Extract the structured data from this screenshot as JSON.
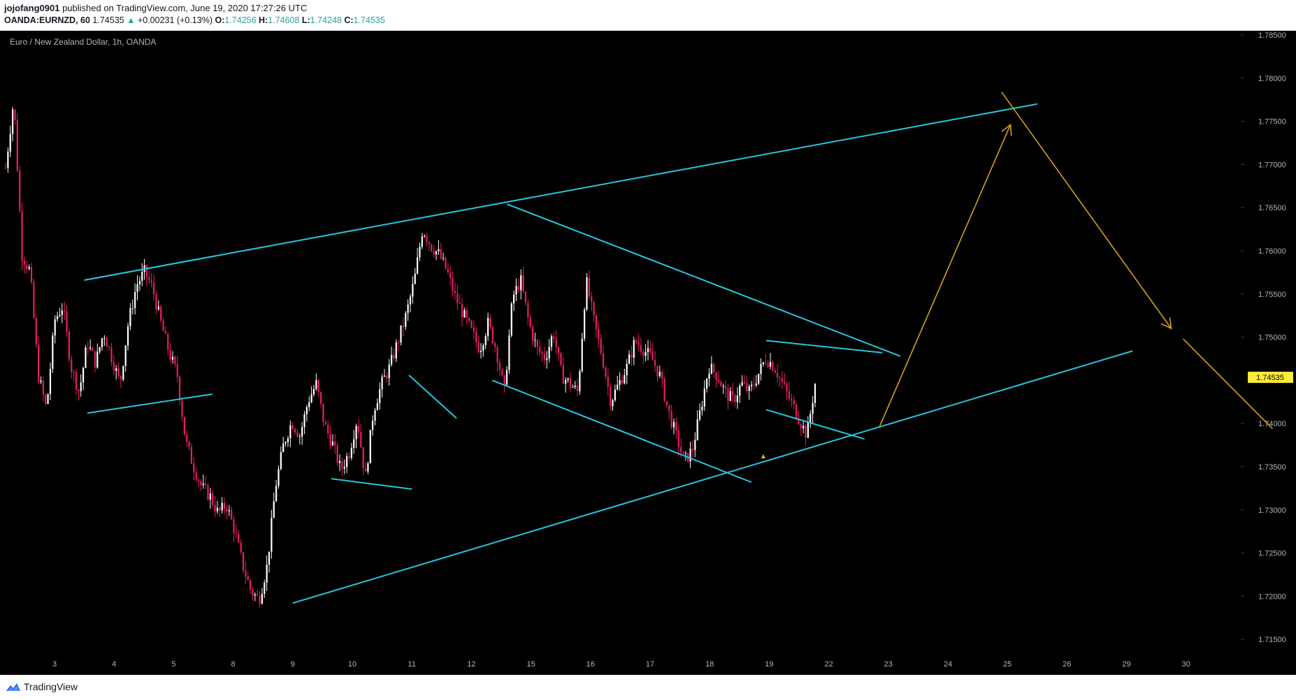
{
  "header": {
    "line1": {
      "author": "jojofang0901",
      "published": " published on TradingView.com, June 19, 2020 17:27:26 UTC"
    },
    "line2": {
      "symbol": "OANDA:EURNZD, 60",
      "price": "1.74535",
      "arrow": "▲",
      "change": "+0.00231 (+0.13%)",
      "o_label": "O:",
      "o_value": "1.74256",
      "h_label": "H:",
      "h_value": "1.74608",
      "l_label": "L:",
      "l_value": "1.74248",
      "c_label": "C:",
      "c_value": "1.74535"
    }
  },
  "chart_data": {
    "type": "candlestick",
    "title": "Euro / New Zealand Dollar, 1h, OANDA",
    "x_tick_labels": [
      "3",
      "4",
      "5",
      "8",
      "9",
      "10",
      "11",
      "12",
      "15",
      "16",
      "17",
      "18",
      "19",
      "22",
      "23",
      "24",
      "25",
      "26",
      "29",
      "30"
    ],
    "y_tick_labels": [
      "1.78500",
      "1.78000",
      "1.77500",
      "1.77000",
      "1.76500",
      "1.76000",
      "1.75500",
      "1.75000",
      "1.74535",
      "1.74000",
      "1.73500",
      "1.73000",
      "1.72500",
      "1.72000",
      "1.71500"
    ],
    "y_range": [
      1.7125,
      1.786
    ],
    "last_price": 1.74535,
    "last_price_label": "1.74535",
    "colors": {
      "up": "#ffffff",
      "down": "#e91e63",
      "trendline": "#26c6da",
      "projection": "#d4a017",
      "price_badge": "#ffeb3b"
    },
    "price_path": [
      1.7696,
      1.7776,
      1.7596,
      1.7576,
      1.7456,
      1.7416,
      1.752,
      1.7536,
      1.7466,
      1.7436,
      1.7494,
      1.747,
      1.7506,
      1.7476,
      1.7446,
      1.7516,
      1.756,
      1.7576,
      1.7556,
      1.7516,
      1.7482,
      1.7456,
      1.738,
      1.735,
      1.7326,
      1.7316,
      1.7296,
      1.7306,
      1.7276,
      1.7236,
      1.7206,
      1.7196,
      1.7236,
      1.7326,
      1.7376,
      1.7402,
      1.7386,
      1.7426,
      1.7446,
      1.7398,
      1.7376,
      1.7346,
      1.7366,
      1.7406,
      1.7336,
      1.7416,
      1.7446,
      1.7466,
      1.7496,
      1.7526,
      1.7566,
      1.7626,
      1.7606,
      1.7596,
      1.7576,
      1.7546,
      1.7526,
      1.7506,
      1.7486,
      1.7516,
      1.7486,
      1.7436,
      1.7546,
      1.7566,
      1.7516,
      1.7486,
      1.7476,
      1.7506,
      1.7456,
      1.7446,
      1.7436,
      1.7566,
      1.7516,
      1.7476,
      1.7426,
      1.7446,
      1.7466,
      1.7496,
      1.7486,
      1.7476,
      1.7456,
      1.7416,
      1.7386,
      1.7356,
      1.737,
      1.7416,
      1.7466,
      1.7456,
      1.7436,
      1.7426,
      1.7446,
      1.7436,
      1.7456,
      1.7476,
      1.7466,
      1.7446,
      1.7426,
      1.7406,
      1.7386,
      1.7446
    ],
    "trendlines": [
      {
        "from": [
          0.5,
          1.7566
        ],
        "to": [
          16.5,
          1.777
        ]
      },
      {
        "from": [
          0.5,
          1.7566
        ],
        "to": [
          2.7,
          1.7594
        ]
      },
      {
        "from": [
          0.55,
          1.7412
        ],
        "to": [
          2.65,
          1.7434
        ]
      },
      {
        "from": [
          4.65,
          1.7336
        ],
        "to": [
          6.0,
          1.7324
        ]
      },
      {
        "from": [
          5.95,
          1.7456
        ],
        "to": [
          6.75,
          1.7406
        ]
      },
      {
        "from": [
          4.0,
          1.7192
        ],
        "to": [
          18.1,
          1.7484
        ]
      },
      {
        "from": [
          7.6,
          1.7654
        ],
        "to": [
          14.2,
          1.7478
        ]
      },
      {
        "from": [
          7.35,
          1.745
        ],
        "to": [
          11.7,
          1.7332
        ]
      },
      {
        "from": [
          11.95,
          1.7496
        ],
        "to": [
          13.9,
          1.7482
        ]
      },
      {
        "from": [
          11.95,
          1.7416
        ],
        "to": [
          13.6,
          1.7382
        ]
      }
    ],
    "projections": [
      {
        "from": [
          13.85,
          1.7396
        ],
        "to": [
          16.05,
          1.7746
        ]
      },
      {
        "from": [
          15.9,
          1.7784
        ],
        "to": [
          18.75,
          1.751
        ]
      },
      {
        "from": [
          18.95,
          1.7498
        ],
        "to": [
          20.45,
          1.7394
        ]
      }
    ]
  },
  "footer": {
    "brand": "TradingView"
  }
}
